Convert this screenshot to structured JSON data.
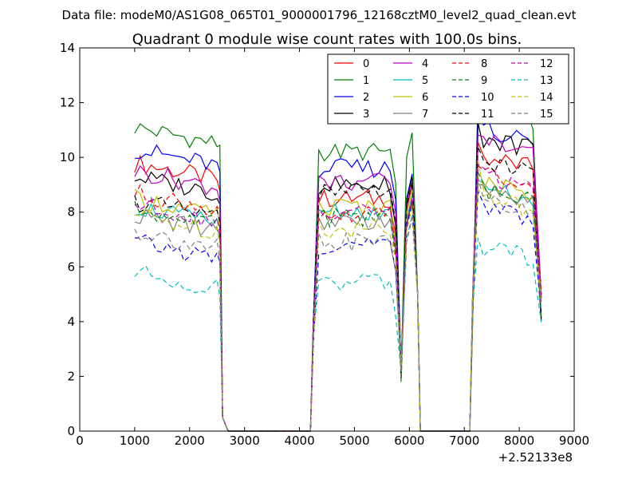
{
  "figure": {
    "suptitle": "Data file: modeM0/AS1G08_065T01_9000001796_12168cztM0_level2_quad_clean.evt"
  },
  "chart_data": {
    "type": "line",
    "title": "Quadrant 0 module wise count rates with 100.0s bins.",
    "xlabel": "",
    "ylabel": "",
    "xlim": [
      0,
      9000
    ],
    "ylim": [
      0,
      14
    ],
    "xticks": [
      0,
      1000,
      2000,
      3000,
      4000,
      5000,
      6000,
      7000,
      8000,
      9000
    ],
    "yticks": [
      0,
      2,
      4,
      6,
      8,
      10,
      12,
      14
    ],
    "x_offset_label": "+2.52133e8",
    "grid": false,
    "legend_position": "top-right",
    "legend_columns": 4,
    "series": [
      {
        "name": "0",
        "color": "#ff0000",
        "dash": "solid",
        "level_seg1": 9.5,
        "level_seg2": 8.5,
        "peak": 9.0,
        "level_seg3": 9.8
      },
      {
        "name": "1",
        "color": "#008000",
        "dash": "solid",
        "level_seg1": 10.8,
        "level_seg2": 10.2,
        "peak": 10.9,
        "level_seg3": 11.5
      },
      {
        "name": "2",
        "color": "#0000ff",
        "dash": "solid",
        "level_seg1": 10.0,
        "level_seg2": 9.6,
        "peak": 9.4,
        "level_seg3": 10.8
      },
      {
        "name": "3",
        "color": "#000000",
        "dash": "solid",
        "level_seg1": 9.0,
        "level_seg2": 9.0,
        "peak": 9.3,
        "level_seg3": 10.5
      },
      {
        "name": "4",
        "color": "#bf00bf",
        "dash": "solid",
        "level_seg1": 9.2,
        "level_seg2": 9.1,
        "peak": 9.1,
        "level_seg3": 10.4
      },
      {
        "name": "5",
        "color": "#00bfbf",
        "dash": "solid",
        "level_seg1": 7.9,
        "level_seg2": 8.0,
        "peak": 8.6,
        "level_seg3": 8.6
      },
      {
        "name": "6",
        "color": "#bfbf00",
        "dash": "solid",
        "level_seg1": 8.2,
        "level_seg2": 8.2,
        "peak": 8.8,
        "level_seg3": 8.9
      },
      {
        "name": "7",
        "color": "#808080",
        "dash": "solid",
        "level_seg1": 7.6,
        "level_seg2": 7.7,
        "peak": 8.5,
        "level_seg3": 8.6
      },
      {
        "name": "8",
        "color": "#ff0000",
        "dash": "dashed",
        "level_seg1": 8.4,
        "level_seg2": 7.9,
        "peak": 8.4,
        "level_seg3": 9.2
      },
      {
        "name": "9",
        "color": "#008000",
        "dash": "dashed",
        "level_seg1": 7.8,
        "level_seg2": 7.8,
        "peak": 8.3,
        "level_seg3": 8.6
      },
      {
        "name": "10",
        "color": "#0000ff",
        "dash": "dashed",
        "level_seg1": 6.6,
        "level_seg2": 6.8,
        "peak": 8.4,
        "level_seg3": 8.0
      },
      {
        "name": "11",
        "color": "#000000",
        "dash": "dashed",
        "level_seg1": 8.1,
        "level_seg2": 8.7,
        "peak": 9.1,
        "level_seg3": 9.6
      },
      {
        "name": "12",
        "color": "#bf00bf",
        "dash": "dashed",
        "level_seg1": 8.0,
        "level_seg2": 8.1,
        "peak": 8.5,
        "level_seg3": 9.1
      },
      {
        "name": "13",
        "color": "#00bfbf",
        "dash": "dashed",
        "level_seg1": 5.5,
        "level_seg2": 5.4,
        "peak": 7.9,
        "level_seg3": 6.5
      },
      {
        "name": "14",
        "color": "#bfbf00",
        "dash": "dashed",
        "level_seg1": 7.6,
        "level_seg2": 7.4,
        "peak": 8.2,
        "level_seg3": 8.3
      },
      {
        "name": "15",
        "color": "#808080",
        "dash": "dashed",
        "level_seg1": 7.0,
        "level_seg2": 6.9,
        "peak": 7.8,
        "level_seg3": 8.2
      }
    ]
  }
}
